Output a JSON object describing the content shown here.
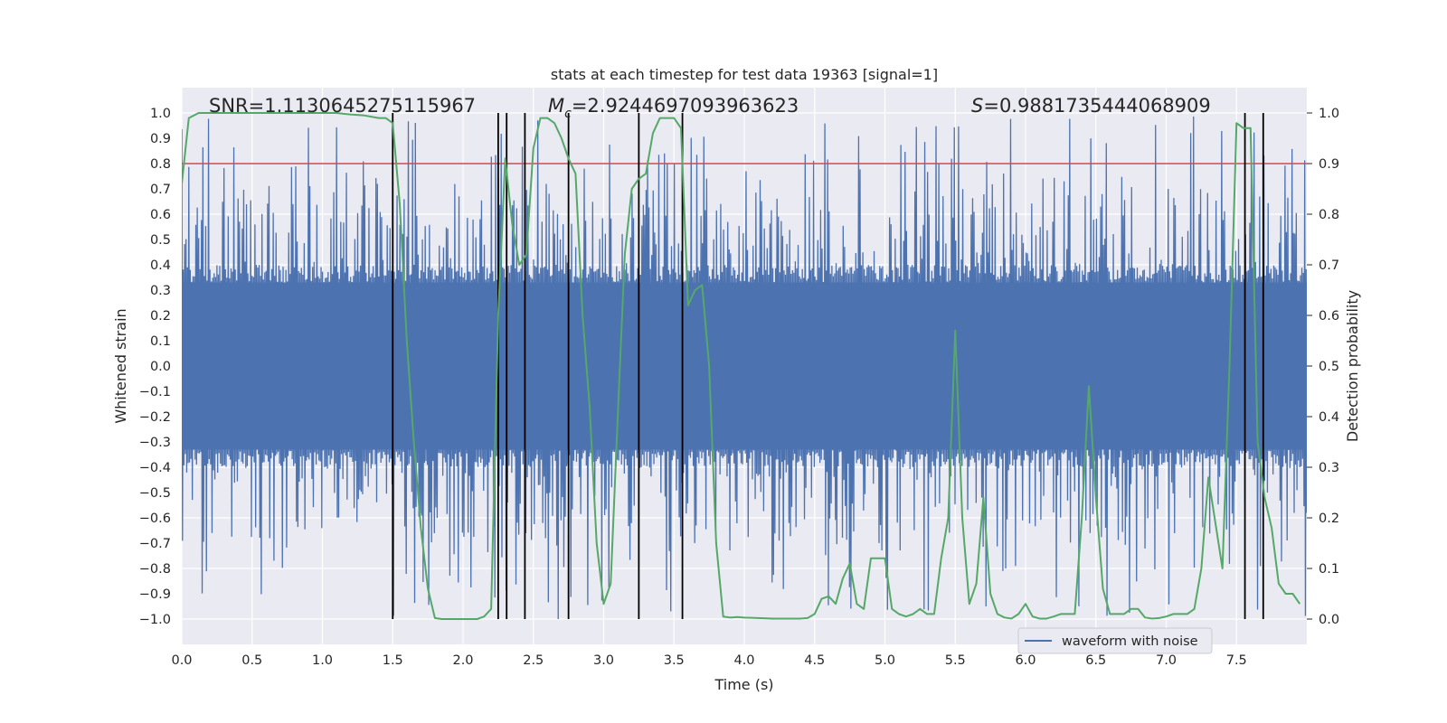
{
  "chart_data": {
    "type": "line",
    "title": "stats at each timestep for test data 19363 [signal=1]",
    "xlabel": "Time (s)",
    "ylabel": "Whitened strain",
    "y2label": "Detection probability",
    "xlim": [
      0.0,
      8.0
    ],
    "ylim": [
      -1.1,
      1.1
    ],
    "y2lim": [
      -0.05,
      1.05
    ],
    "x_ticks": [
      0.0,
      0.5,
      1.0,
      1.5,
      2.0,
      2.5,
      3.0,
      3.5,
      4.0,
      4.5,
      5.0,
      5.5,
      6.0,
      6.5,
      7.0,
      7.5
    ],
    "x_tick_labels": [
      "0.0",
      "0.5",
      "1.0",
      "1.5",
      "2.0",
      "2.5",
      "3.0",
      "3.5",
      "4.0",
      "4.5",
      "5.0",
      "5.5",
      "6.0",
      "6.5",
      "7.0",
      "7.5"
    ],
    "y_ticks": [
      -1.0,
      -0.9,
      -0.8,
      -0.7,
      -0.6,
      -0.5,
      -0.4,
      -0.3,
      -0.2,
      -0.1,
      0.0,
      0.1,
      0.2,
      0.3,
      0.4,
      0.5,
      0.6,
      0.7,
      0.8,
      0.9,
      1.0
    ],
    "y_tick_labels": [
      "−1.0",
      "−0.9",
      "−0.8",
      "−0.7",
      "−0.6",
      "−0.5",
      "−0.4",
      "−0.3",
      "−0.2",
      "−0.1",
      "0.0",
      "0.1",
      "0.2",
      "0.3",
      "0.4",
      "0.5",
      "0.6",
      "0.7",
      "0.8",
      "0.9",
      "1.0"
    ],
    "y2_ticks": [
      0.0,
      0.1,
      0.2,
      0.3,
      0.4,
      0.5,
      0.6,
      0.7,
      0.8,
      0.9,
      1.0
    ],
    "y2_tick_labels": [
      "0.0",
      "0.1",
      "0.2",
      "0.3",
      "0.4",
      "0.5",
      "0.6",
      "0.7",
      "0.8",
      "0.9",
      "1.0"
    ],
    "annotations": {
      "snr": "SNR=1.1130645275115967",
      "mc_symbol": "M",
      "mc_subscript": "c",
      "mc_value": "=2.9244697093963623",
      "s_symbol": "S",
      "s_value": "=0.9881735444068909"
    },
    "threshold": 0.9,
    "vertical_lines": [
      1.5,
      2.25,
      2.31,
      2.44,
      2.75,
      3.25,
      3.56,
      7.56,
      7.69
    ],
    "legend": {
      "label": "waveform with noise",
      "location": "lower-right"
    },
    "colors": {
      "waveform": "#4c72b0",
      "probability": "#55a868",
      "threshold": "#c44e52",
      "vlines": "#000000",
      "axes_bg": "#eaeaf2",
      "grid": "#ffffff"
    },
    "series": [
      {
        "name": "waveform with noise",
        "kind": "strain",
        "sample_count": 1600,
        "envelope_core": 0.33,
        "envelope_peak_max": 1.0,
        "envelope_peak_min": -1.0
      },
      {
        "name": "Detection probability",
        "kind": "probability",
        "x": [
          0.0,
          0.05,
          0.12,
          0.2,
          0.3,
          0.4,
          0.5,
          0.6,
          0.7,
          0.8,
          0.9,
          1.0,
          1.1,
          1.2,
          1.3,
          1.4,
          1.45,
          1.5,
          1.55,
          1.6,
          1.65,
          1.7,
          1.75,
          1.8,
          1.85,
          1.9,
          1.95,
          2.0,
          2.05,
          2.1,
          2.15,
          2.2,
          2.25,
          2.3,
          2.35,
          2.4,
          2.45,
          2.5,
          2.55,
          2.6,
          2.65,
          2.7,
          2.75,
          2.8,
          2.85,
          2.9,
          2.95,
          3.0,
          3.05,
          3.1,
          3.15,
          3.2,
          3.25,
          3.3,
          3.35,
          3.4,
          3.45,
          3.5,
          3.55,
          3.6,
          3.65,
          3.7,
          3.75,
          3.8,
          3.85,
          3.9,
          3.95,
          4.0,
          4.1,
          4.2,
          4.3,
          4.4,
          4.45,
          4.5,
          4.55,
          4.6,
          4.65,
          4.7,
          4.75,
          4.8,
          4.85,
          4.9,
          4.95,
          5.0,
          5.05,
          5.1,
          5.15,
          5.2,
          5.25,
          5.3,
          5.35,
          5.4,
          5.45,
          5.5,
          5.55,
          5.6,
          5.65,
          5.7,
          5.75,
          5.8,
          5.85,
          5.9,
          5.95,
          6.0,
          6.05,
          6.1,
          6.15,
          6.2,
          6.25,
          6.3,
          6.35,
          6.4,
          6.45,
          6.5,
          6.55,
          6.6,
          6.65,
          6.7,
          6.75,
          6.8,
          6.85,
          6.9,
          6.95,
          7.0,
          7.05,
          7.1,
          7.15,
          7.2,
          7.25,
          7.3,
          7.35,
          7.4,
          7.45,
          7.5,
          7.55,
          7.6,
          7.65,
          7.7,
          7.75,
          7.8,
          7.85,
          7.9,
          7.95
        ],
        "values": [
          0.86,
          0.99,
          1.0,
          1.0,
          1.0,
          1.0,
          1.0,
          1.0,
          1.0,
          1.0,
          1.0,
          1.0,
          1.0,
          0.997,
          0.995,
          0.99,
          0.99,
          0.98,
          0.82,
          0.55,
          0.35,
          0.18,
          0.06,
          0.002,
          0.0,
          0.0,
          0.0,
          0.0,
          0.0,
          0.0,
          0.005,
          0.02,
          0.6,
          0.91,
          0.78,
          0.7,
          0.72,
          0.93,
          0.99,
          0.99,
          0.98,
          0.95,
          0.91,
          0.88,
          0.6,
          0.42,
          0.15,
          0.03,
          0.07,
          0.4,
          0.72,
          0.85,
          0.87,
          0.88,
          0.96,
          0.99,
          0.99,
          0.99,
          0.97,
          0.62,
          0.65,
          0.66,
          0.5,
          0.15,
          0.005,
          0.003,
          0.004,
          0.003,
          0.002,
          0.001,
          0.001,
          0.001,
          0.002,
          0.01,
          0.04,
          0.045,
          0.03,
          0.08,
          0.11,
          0.03,
          0.02,
          0.12,
          0.12,
          0.12,
          0.02,
          0.01,
          0.005,
          0.01,
          0.02,
          0.01,
          0.01,
          0.12,
          0.2,
          0.57,
          0.2,
          0.03,
          0.07,
          0.24,
          0.05,
          0.01,
          0.003,
          0.001,
          0.01,
          0.03,
          0.005,
          0.001,
          0.001,
          0.005,
          0.01,
          0.01,
          0.01,
          0.2,
          0.46,
          0.24,
          0.06,
          0.01,
          0.01,
          0.01,
          0.02,
          0.02,
          0.003,
          0.001,
          0.002,
          0.005,
          0.01,
          0.01,
          0.01,
          0.02,
          0.1,
          0.28,
          0.19,
          0.1,
          0.5,
          0.98,
          0.97,
          0.97,
          0.35,
          0.24,
          0.18,
          0.07,
          0.05,
          0.05,
          0.03
        ]
      }
    ]
  }
}
